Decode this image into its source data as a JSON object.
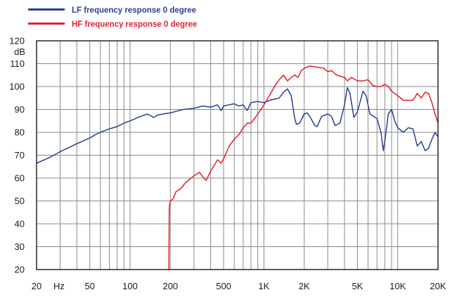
{
  "chart_data": {
    "type": "line",
    "title": "",
    "xlabel": "Hz",
    "ylabel": "dB",
    "x_scale": "log",
    "xlim": [
      20,
      20000
    ],
    "ylim": [
      20,
      120
    ],
    "y_ticks": [
      20,
      30,
      40,
      50,
      60,
      70,
      80,
      90,
      100,
      110,
      120
    ],
    "x_tick_labels": [
      {
        "value": 20,
        "label": "20"
      },
      {
        "value": 50,
        "label": "50"
      },
      {
        "value": 100,
        "label": "100"
      },
      {
        "value": 200,
        "label": "200"
      },
      {
        "value": 500,
        "label": "500"
      },
      {
        "value": 1000,
        "label": "1K"
      },
      {
        "value": 2000,
        "label": "2K"
      },
      {
        "value": 5000,
        "label": "5K"
      },
      {
        "value": 10000,
        "label": "10K"
      },
      {
        "value": 20000,
        "label": "20K"
      }
    ],
    "x_gridlines": [
      20,
      30,
      40,
      50,
      60,
      70,
      80,
      90,
      100,
      200,
      300,
      400,
      500,
      600,
      700,
      800,
      900,
      1000,
      2000,
      3000,
      4000,
      5000,
      6000,
      7000,
      8000,
      9000,
      10000,
      20000
    ],
    "grid": true,
    "legend_position": "top-left",
    "series": [
      {
        "name": "LF frequency response 0 degree",
        "color": "#2b3f94",
        "points": [
          [
            20,
            66.5
          ],
          [
            25,
            69
          ],
          [
            30,
            71.5
          ],
          [
            40,
            75
          ],
          [
            50,
            77.5
          ],
          [
            55,
            79
          ],
          [
            60,
            80
          ],
          [
            70,
            81.5
          ],
          [
            80,
            82.5
          ],
          [
            90,
            84
          ],
          [
            100,
            85
          ],
          [
            120,
            87
          ],
          [
            135,
            88
          ],
          [
            150,
            86.5
          ],
          [
            160,
            87.5
          ],
          [
            175,
            88
          ],
          [
            200,
            88.5
          ],
          [
            250,
            90
          ],
          [
            300,
            90.5
          ],
          [
            350,
            91.5
          ],
          [
            400,
            91
          ],
          [
            450,
            92
          ],
          [
            480,
            89.5
          ],
          [
            500,
            91.5
          ],
          [
            600,
            92.5
          ],
          [
            650,
            91.5
          ],
          [
            700,
            92
          ],
          [
            750,
            89.5
          ],
          [
            800,
            93
          ],
          [
            900,
            93.5
          ],
          [
            1000,
            93
          ],
          [
            1100,
            94
          ],
          [
            1200,
            94.5
          ],
          [
            1300,
            95
          ],
          [
            1400,
            97.5
          ],
          [
            1500,
            99
          ],
          [
            1600,
            96
          ],
          [
            1700,
            86
          ],
          [
            1750,
            83.5
          ],
          [
            1850,
            84
          ],
          [
            2000,
            88
          ],
          [
            2100,
            88.5
          ],
          [
            2200,
            87
          ],
          [
            2400,
            83
          ],
          [
            2500,
            82.5
          ],
          [
            2700,
            87
          ],
          [
            3000,
            88
          ],
          [
            3200,
            87
          ],
          [
            3400,
            83
          ],
          [
            3700,
            84
          ],
          [
            4000,
            92
          ],
          [
            4200,
            99.5
          ],
          [
            4400,
            97
          ],
          [
            4700,
            86.5
          ],
          [
            5000,
            89
          ],
          [
            5500,
            98
          ],
          [
            5800,
            96
          ],
          [
            6200,
            88
          ],
          [
            7000,
            86
          ],
          [
            7500,
            80
          ],
          [
            7800,
            72
          ],
          [
            8000,
            76
          ],
          [
            8500,
            88
          ],
          [
            9000,
            90
          ],
          [
            9500,
            85
          ],
          [
            10000,
            82
          ],
          [
            11000,
            80
          ],
          [
            12000,
            82
          ],
          [
            13000,
            81.5
          ],
          [
            14000,
            74
          ],
          [
            15000,
            76
          ],
          [
            16000,
            72
          ],
          [
            17000,
            73
          ],
          [
            18000,
            77
          ],
          [
            19000,
            80
          ],
          [
            20000,
            78
          ]
        ]
      },
      {
        "name": "HF frequency response 0 degree",
        "color": "#e0202e",
        "points": [
          [
            195,
            20
          ],
          [
            196,
            47
          ],
          [
            200,
            50
          ],
          [
            210,
            51
          ],
          [
            220,
            54
          ],
          [
            240,
            55.5
          ],
          [
            260,
            58
          ],
          [
            300,
            61
          ],
          [
            330,
            62.5
          ],
          [
            350,
            60.5
          ],
          [
            370,
            59
          ],
          [
            400,
            63
          ],
          [
            450,
            68
          ],
          [
            480,
            66.5
          ],
          [
            500,
            68.5
          ],
          [
            550,
            74
          ],
          [
            600,
            77
          ],
          [
            650,
            79
          ],
          [
            700,
            82
          ],
          [
            750,
            84
          ],
          [
            800,
            84
          ],
          [
            850,
            86
          ],
          [
            900,
            88
          ],
          [
            1000,
            92
          ],
          [
            1100,
            96
          ],
          [
            1200,
            100
          ],
          [
            1300,
            103
          ],
          [
            1400,
            105
          ],
          [
            1500,
            102.5
          ],
          [
            1600,
            104
          ],
          [
            1700,
            105
          ],
          [
            1800,
            104
          ],
          [
            1900,
            107
          ],
          [
            2000,
            108
          ],
          [
            2200,
            109
          ],
          [
            2500,
            108.5
          ],
          [
            2800,
            108
          ],
          [
            3000,
            106.5
          ],
          [
            3200,
            107
          ],
          [
            3500,
            105
          ],
          [
            4000,
            104
          ],
          [
            4200,
            102.5
          ],
          [
            4500,
            104
          ],
          [
            5000,
            102.5
          ],
          [
            5500,
            102.5
          ],
          [
            6000,
            103
          ],
          [
            6500,
            100.5
          ],
          [
            7000,
            100
          ],
          [
            7500,
            100
          ],
          [
            8000,
            101
          ],
          [
            8500,
            100
          ],
          [
            9000,
            98
          ],
          [
            10000,
            96
          ],
          [
            11000,
            94
          ],
          [
            12000,
            94
          ],
          [
            13000,
            94
          ],
          [
            14000,
            97
          ],
          [
            15000,
            95
          ],
          [
            16000,
            97.5
          ],
          [
            17000,
            97
          ],
          [
            18000,
            93
          ],
          [
            19000,
            88
          ],
          [
            20000,
            84
          ]
        ]
      }
    ]
  }
}
